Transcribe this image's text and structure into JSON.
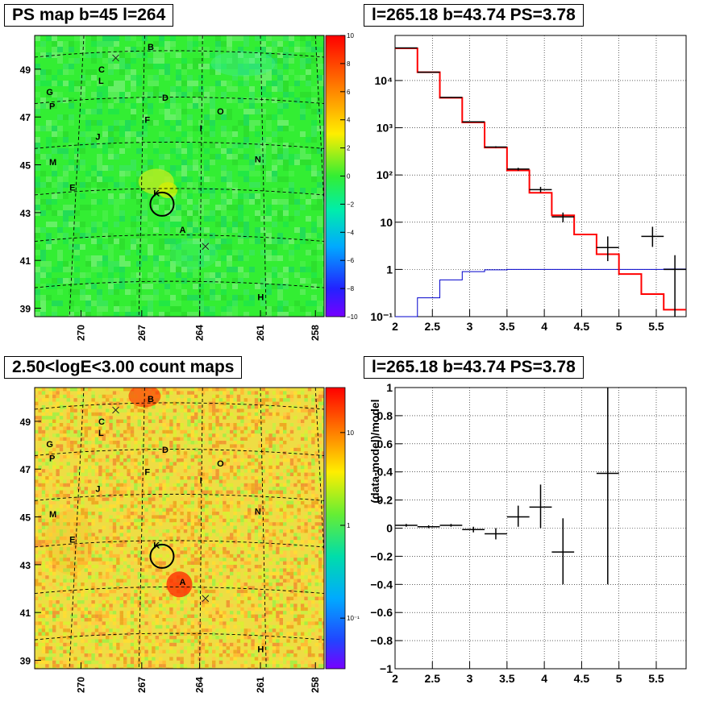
{
  "titles": {
    "ps_map": "PS map b=45 l=264",
    "spectrum": "l=265.18 b=43.74 PS=3.78",
    "count_map": "2.50<logE<3.00 count maps",
    "residual": "l=265.18 b=43.74 PS=3.78"
  },
  "colors": {
    "ps_map_background": "#33ee33",
    "count_map_background": "#eedd44",
    "data": "#000000",
    "model": "#ff0000",
    "background_model": "#0000cc",
    "grid": "#000000"
  },
  "chart_data": [
    {
      "type": "heatmap",
      "title": "PS map b=45 l=264",
      "x_ticks": [
        "270",
        "267",
        "264",
        "261",
        "258"
      ],
      "y_ticks": [
        "49",
        "47",
        "45",
        "43",
        "41",
        "39"
      ],
      "colorbar": {
        "min": -10,
        "max": 10,
        "ticks": [
          "10",
          "8",
          "6",
          "4",
          "2",
          "0",
          "−2",
          "−4",
          "−6",
          "−8",
          "−10"
        ]
      },
      "source_labels": [
        "A",
        "B",
        "C",
        "D",
        "E",
        "F",
        "G",
        "H",
        "I",
        "J",
        "K",
        "L",
        "M",
        "N",
        "O",
        "P"
      ],
      "circle_label": "K"
    },
    {
      "type": "line",
      "title": "l=265.18 b=43.74 PS=3.78",
      "ylog": true,
      "xlim": [
        2,
        5.9
      ],
      "ylim": [
        0.1,
        90000
      ],
      "x_ticks": [
        "2",
        "2.5",
        "3",
        "3.5",
        "4",
        "4.5",
        "5",
        "5.5"
      ],
      "y_ticks": [
        "10⁴",
        "10³",
        "10²",
        "10",
        "1",
        "10⁻¹"
      ],
      "bin_edges": [
        2.0,
        2.3,
        2.6,
        2.9,
        3.2,
        3.5,
        3.8,
        4.1,
        4.4,
        4.7,
        5.0,
        5.3,
        5.6,
        5.9
      ],
      "series": [
        {
          "values": [
            48000,
            15000,
            4300,
            1300,
            380,
            125,
            42,
            14,
            5.5,
            2.1,
            0.8,
            0.3,
            0.14
          ]
        },
        {
          "values": [
            0.06,
            0.25,
            0.6,
            0.9,
            0.98,
            1.0,
            1.0,
            1.0,
            1.0,
            1.0,
            1.0,
            1.0,
            1.02
          ]
        }
      ],
      "points": [
        {
          "x": 2.15,
          "y": 49000,
          "xerr": 0.15,
          "ylo": 48500,
          "yhi": 49500
        },
        {
          "x": 2.45,
          "y": 15000,
          "xerr": 0.15,
          "ylo": 14800,
          "yhi": 15200
        },
        {
          "x": 2.75,
          "y": 4400,
          "xerr": 0.15,
          "ylo": 4300,
          "yhi": 4500
        },
        {
          "x": 3.05,
          "y": 1330,
          "xerr": 0.15,
          "ylo": 1300,
          "yhi": 1360
        },
        {
          "x": 3.35,
          "y": 390,
          "xerr": 0.15,
          "ylo": 375,
          "yhi": 405
        },
        {
          "x": 3.65,
          "y": 133,
          "xerr": 0.15,
          "ylo": 124,
          "yhi": 142
        },
        {
          "x": 3.95,
          "y": 49,
          "xerr": 0.15,
          "ylo": 43,
          "yhi": 56
        },
        {
          "x": 4.25,
          "y": 13,
          "xerr": 0.15,
          "ylo": 10,
          "yhi": 16
        },
        {
          "x": 4.85,
          "y": 2.9,
          "xerr": 0.15,
          "ylo": 1.5,
          "yhi": 5
        },
        {
          "x": 5.45,
          "y": 5,
          "xerr": 0.15,
          "ylo": 3,
          "yhi": 8
        },
        {
          "x": 5.75,
          "y": 1,
          "xerr": 0.15,
          "ylo": 0.1,
          "yhi": 2
        }
      ]
    },
    {
      "type": "heatmap",
      "title": "2.50<logE<3.00 count maps",
      "x_ticks": [
        "270",
        "267",
        "264",
        "261",
        "258"
      ],
      "y_ticks": [
        "49",
        "47",
        "45",
        "43",
        "41",
        "39"
      ],
      "colorbar": {
        "scale": "log",
        "ticks": [
          "10",
          "1",
          "10⁻¹"
        ]
      },
      "source_labels": [
        "A",
        "B",
        "C",
        "D",
        "E",
        "F",
        "G",
        "H",
        "I",
        "J",
        "K",
        "L",
        "M",
        "N",
        "O",
        "P"
      ],
      "circle_label": "K"
    },
    {
      "type": "scatter",
      "title": "l=265.18 b=43.74 PS=3.78",
      "ylabel": "(data-model)/model",
      "xlim": [
        2,
        5.9
      ],
      "ylim": [
        -1,
        1
      ],
      "x_ticks": [
        "2",
        "2.5",
        "3",
        "3.5",
        "4",
        "4.5",
        "5",
        "5.5"
      ],
      "y_ticks": [
        "1",
        "0.8",
        "0.6",
        "0.4",
        "0.2",
        "0",
        "−0.2",
        "−0.4",
        "−0.6",
        "−0.8",
        "−1"
      ],
      "points": [
        {
          "x": 2.15,
          "y": 0.02,
          "xerr": 0.15,
          "ylo": 0.01,
          "yhi": 0.03
        },
        {
          "x": 2.45,
          "y": 0.01,
          "xerr": 0.15,
          "ylo": 0.0,
          "yhi": 0.02
        },
        {
          "x": 2.75,
          "y": 0.02,
          "xerr": 0.15,
          "ylo": 0.01,
          "yhi": 0.03
        },
        {
          "x": 3.05,
          "y": -0.01,
          "xerr": 0.15,
          "ylo": -0.03,
          "yhi": 0.01
        },
        {
          "x": 3.35,
          "y": -0.04,
          "xerr": 0.15,
          "ylo": -0.08,
          "yhi": 0.0
        },
        {
          "x": 3.65,
          "y": 0.08,
          "xerr": 0.15,
          "ylo": 0.01,
          "yhi": 0.16
        },
        {
          "x": 3.95,
          "y": 0.15,
          "xerr": 0.15,
          "ylo": 0.0,
          "yhi": 0.31
        },
        {
          "x": 4.25,
          "y": -0.17,
          "xerr": 0.15,
          "ylo": -0.4,
          "yhi": 0.07
        },
        {
          "x": 4.85,
          "y": 0.39,
          "xerr": 0.15,
          "ylo": -0.4,
          "yhi": 1.0
        }
      ]
    }
  ]
}
